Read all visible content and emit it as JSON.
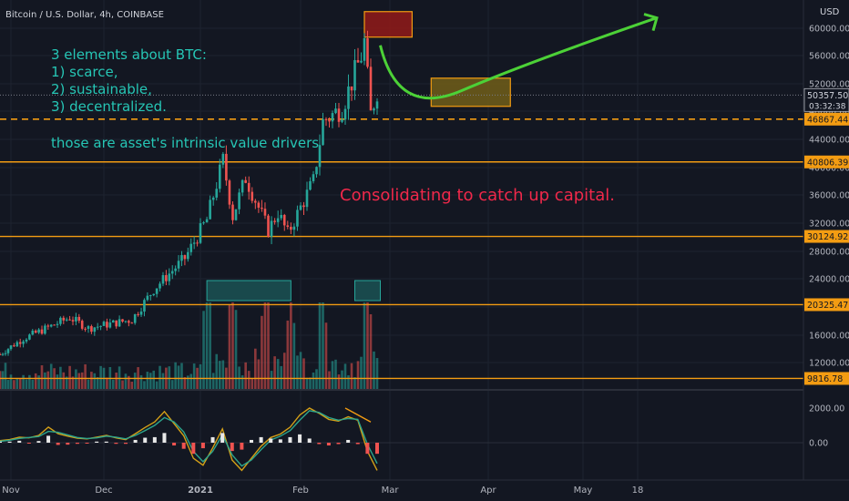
{
  "header": {
    "symbol_label": "Bitcoin / U.S. Dollar, 4h, COINBASE",
    "currency": "USD"
  },
  "annotations": {
    "elements_title": "3 elements about BTC:",
    "elements": [
      "1) scarce,",
      "2) sustainable,",
      "3) decentralized."
    ],
    "drivers": "those are asset's intrinsic value drivers",
    "consolidating": "Consolidating to catch up capital."
  },
  "colors": {
    "background": "#131722",
    "annotation_teal": "#26c6b5",
    "annotation_red": "#f0284a",
    "level_line": "#f39c12",
    "candle_up": "#26a69a",
    "candle_down": "#ef5350",
    "arrow": "#4cd137"
  },
  "chart_data": [
    {
      "type": "candlestick",
      "title": "Bitcoin / U.S. Dollar, 4h, COINBASE",
      "y_unit": "USD",
      "y_tick_labels": [
        "60000.00",
        "56000.00",
        "52000.00",
        "48000.00",
        "44000.00",
        "40000.00",
        "36000.00",
        "32000.00",
        "28000.00",
        "24000.00",
        "20000.00",
        "16000.00",
        "12000.00"
      ],
      "ylim": [
        8000,
        62500
      ],
      "x_tick_labels": [
        "Nov",
        "Dec",
        "2021",
        "Feb",
        "Mar",
        "Apr",
        "May",
        "18"
      ],
      "price_keypoints": [
        {
          "date": "2020-10-28",
          "price": 13200
        },
        {
          "date": "2020-11-05",
          "price": 15500
        },
        {
          "date": "2020-11-20",
          "price": 18500
        },
        {
          "date": "2020-11-26",
          "price": 17000
        },
        {
          "date": "2020-12-10",
          "price": 18200
        },
        {
          "date": "2020-12-17",
          "price": 22500
        },
        {
          "date": "2020-12-27",
          "price": 27000
        },
        {
          "date": "2021-01-03",
          "price": 32500
        },
        {
          "date": "2021-01-08",
          "price": 41000
        },
        {
          "date": "2021-01-11",
          "price": 33000
        },
        {
          "date": "2021-01-15",
          "price": 38500
        },
        {
          "date": "2021-01-22",
          "price": 31000
        },
        {
          "date": "2021-01-25",
          "price": 33500
        },
        {
          "date": "2021-01-28",
          "price": 30500
        },
        {
          "date": "2021-02-05",
          "price": 38000
        },
        {
          "date": "2021-02-08",
          "price": 46500
        },
        {
          "date": "2021-02-14",
          "price": 48500
        },
        {
          "date": "2021-02-20",
          "price": 56000
        },
        {
          "date": "2021-02-21",
          "price": 58000
        },
        {
          "date": "2021-02-23",
          "price": 47500
        },
        {
          "date": "2021-02-25",
          "price": 51000
        }
      ],
      "price_levels": [
        {
          "price": 46867.44,
          "label": "46867.44",
          "style": "dashed"
        },
        {
          "price": 40806.39,
          "label": "40806.39",
          "style": "solid"
        },
        {
          "price": 30124.92,
          "label": "30124.92",
          "style": "solid"
        },
        {
          "price": 20325.47,
          "label": "20325.47",
          "style": "solid"
        },
        {
          "price": 9816.78,
          "label": "9816.78",
          "style": "solid"
        }
      ],
      "last_price": {
        "price": 50357.5,
        "label": "50357.50",
        "countdown": "03:32:38"
      },
      "volume": {
        "shown": true,
        "spikes": [
          "2021-01-03",
          "2021-01-11",
          "2021-01-21",
          "2021-01-29",
          "2021-02-08",
          "2021-02-22"
        ]
      },
      "projection_arrow": {
        "from": {
          "date": "2021-02-26",
          "price": 57500
        },
        "via": {
          "date": "2021-03-15",
          "price": 51000
        },
        "to": {
          "date": "2021-05-24",
          "price": 61500
        }
      },
      "target_zones": [
        {
          "date_from": "2021-02-21",
          "date_to": "2021-03-08",
          "price_from": 58700,
          "price_to": 62400,
          "color": "#8b1a1a"
        },
        {
          "date_from": "2021-03-14",
          "date_to": "2021-04-08",
          "price_from": 48700,
          "price_to": 52800,
          "color": "#6b5a1a"
        }
      ],
      "volume_highlight_boxes": [
        {
          "date_from": "2021-01-03",
          "date_to": "2021-01-29"
        },
        {
          "date_from": "2021-02-18",
          "date_to": "2021-02-26"
        }
      ],
      "grid": true
    },
    {
      "type": "line",
      "title": "",
      "y_tick_labels": [
        "2000.00",
        "0.00"
      ],
      "ylim": [
        -2200,
        2800
      ],
      "series": [
        {
          "values": [
            120,
            180,
            320,
            280,
            420,
            900,
            520,
            380,
            260,
            220,
            320,
            420,
            280,
            180,
            520,
            880,
            1200,
            1800,
            1100,
            400,
            -900,
            -1300,
            -300,
            800,
            -1000,
            -1600,
            -900,
            -200,
            300,
            500,
            900,
            1600,
            2000,
            1700,
            1350,
            1250,
            1500,
            1300,
            -500,
            -1600
          ]
        },
        {
          "values": [
            80,
            140,
            250,
            300,
            360,
            650,
            600,
            450,
            300,
            240,
            280,
            380,
            320,
            220,
            420,
            700,
            1000,
            1450,
            1200,
            620,
            -500,
            -1100,
            -500,
            450,
            -700,
            -1350,
            -1000,
            -400,
            150,
            380,
            700,
            1300,
            1850,
            1750,
            1450,
            1300,
            1400,
            1350,
            -100,
            -1200
          ]
        }
      ],
      "histogram": true,
      "divergence_line": {
        "from": {
          "date": "2021-02-15",
          "value": 2000
        },
        "to": {
          "date": "2021-02-23",
          "value": 1200
        }
      }
    }
  ]
}
